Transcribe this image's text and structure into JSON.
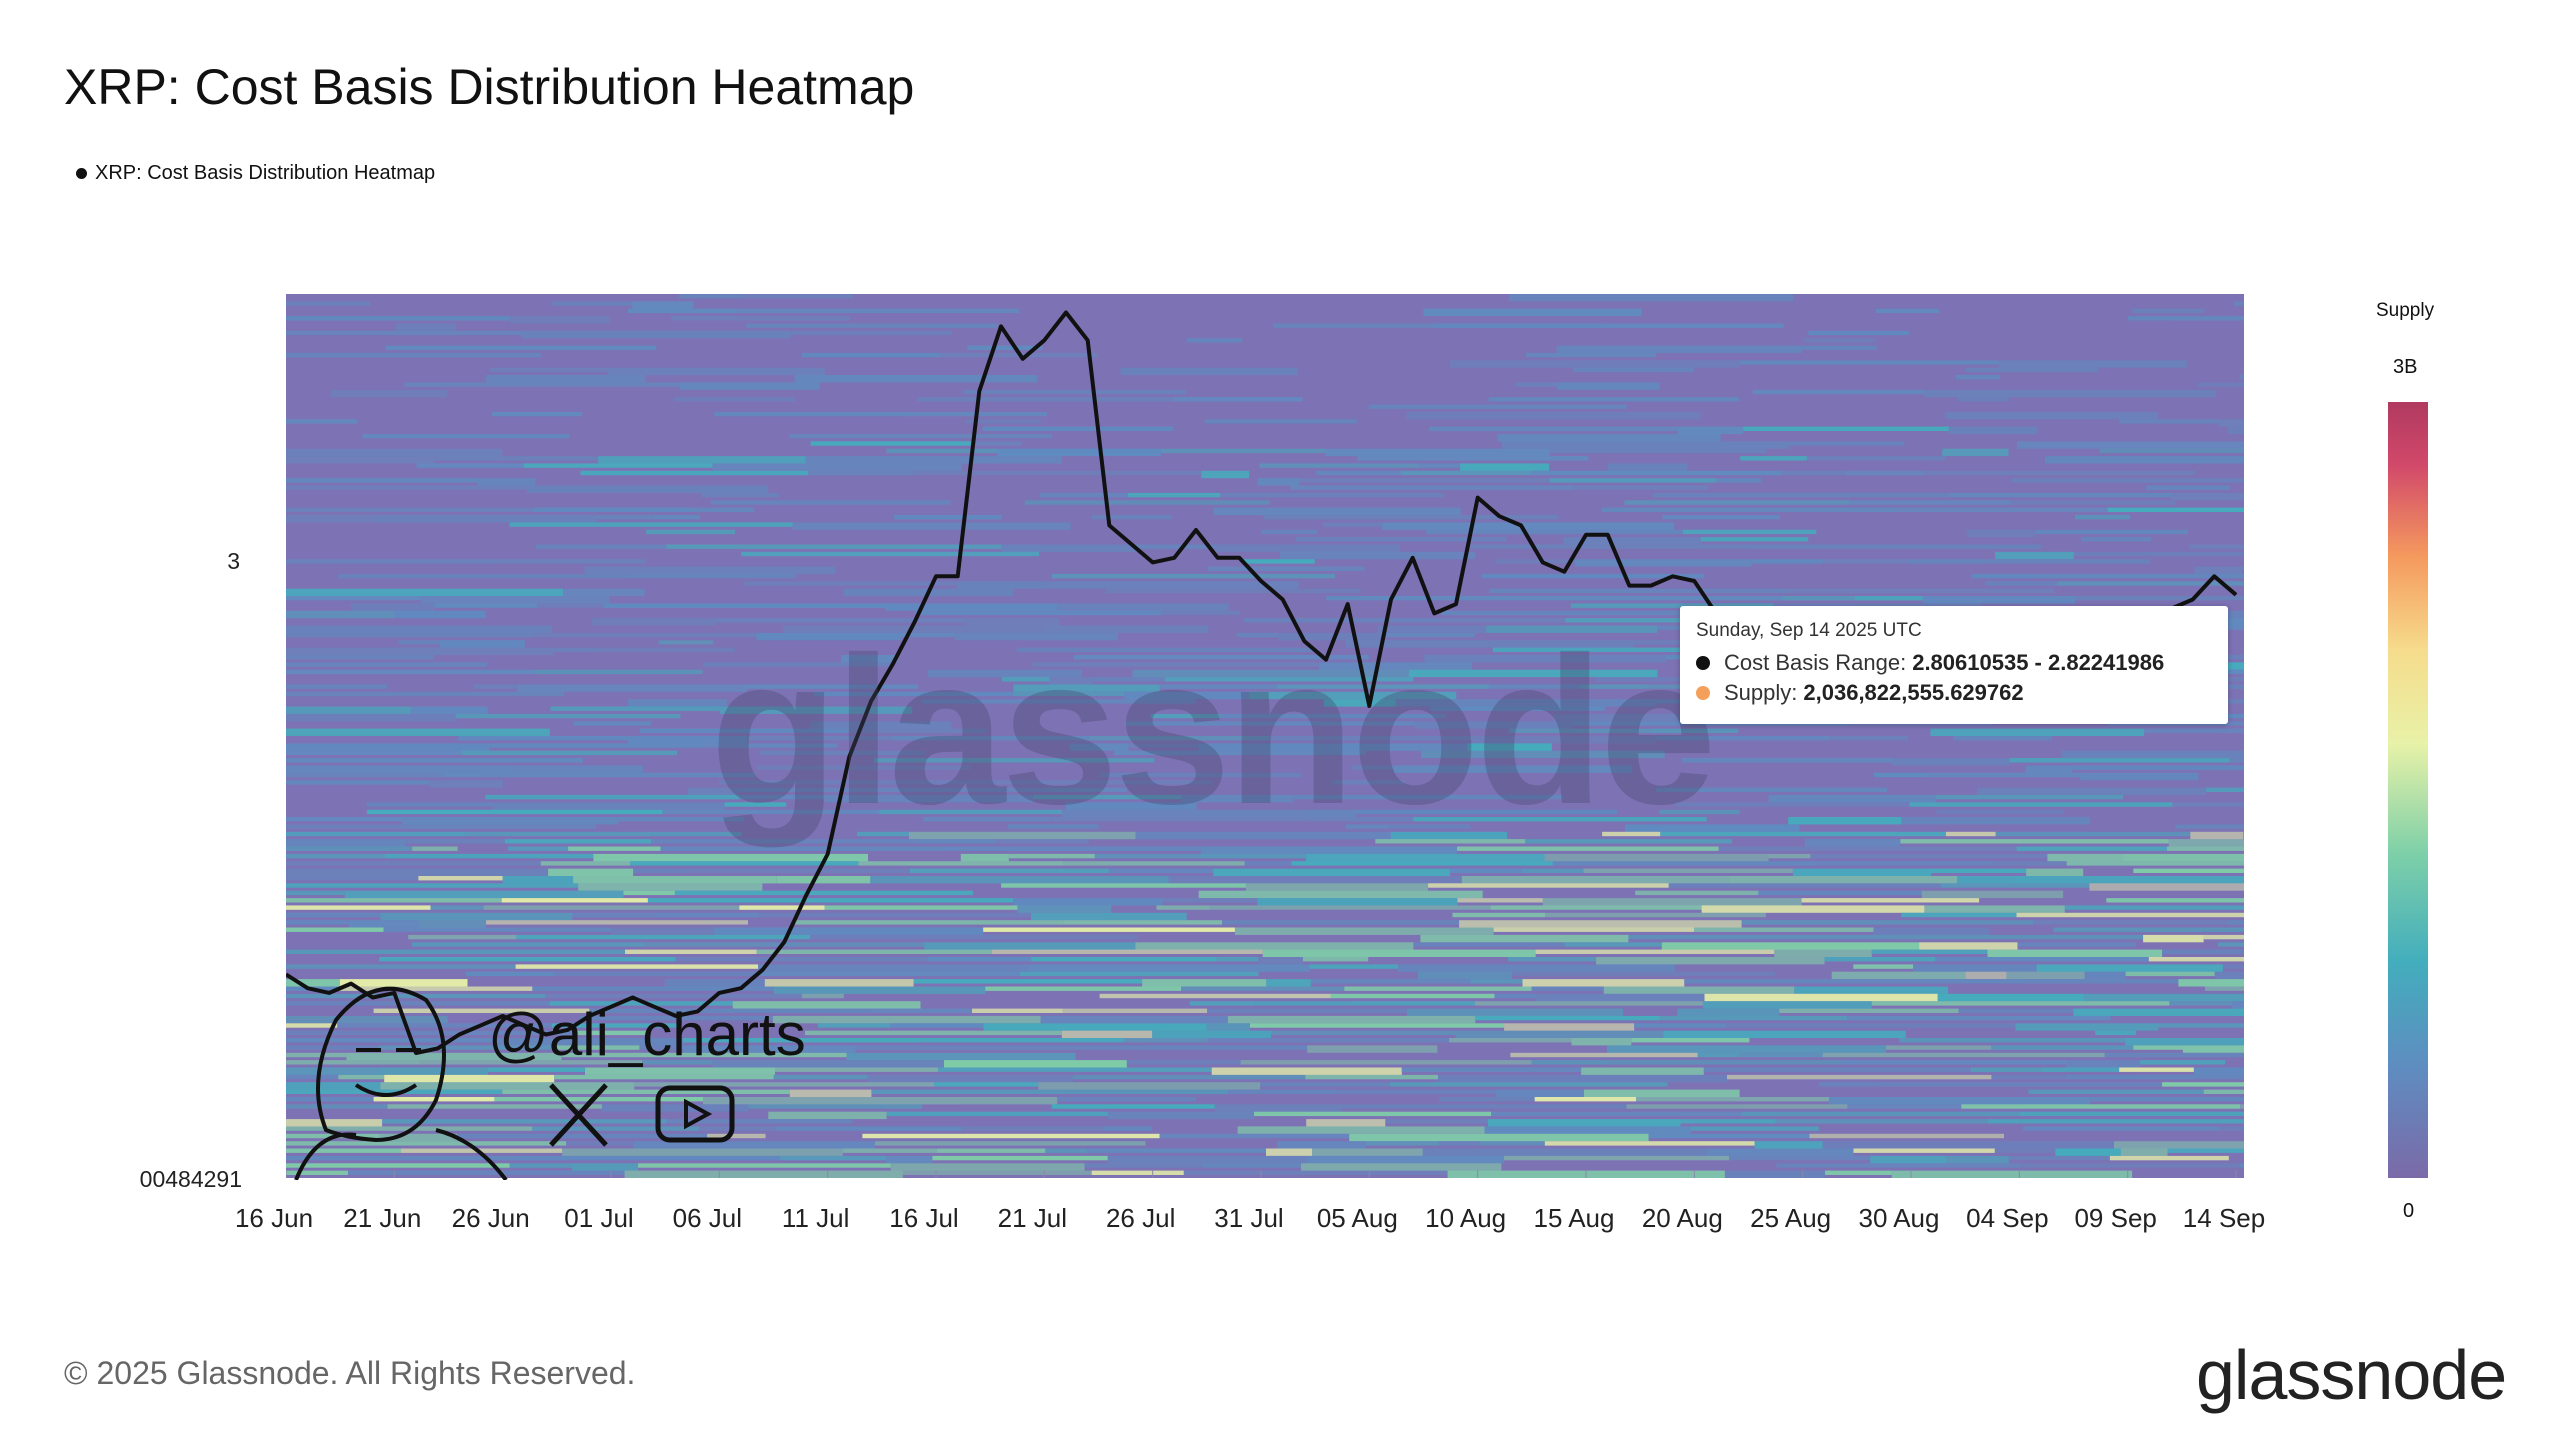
{
  "title": "XRP: Cost Basis Distribution Heatmap",
  "legend_label": "XRP: Cost Basis Distribution Heatmap",
  "chart_data": {
    "type": "heatmap",
    "title": "XRP: Cost Basis Distribution Heatmap",
    "x_tick_labels": [
      "16 Jun",
      "21 Jun",
      "26 Jun",
      "01 Jul",
      "06 Jul",
      "11 Jul",
      "16 Jul",
      "21 Jul",
      "26 Jul",
      "31 Jul",
      "05 Aug",
      "10 Aug",
      "15 Aug",
      "20 Aug",
      "25 Aug",
      "30 Aug",
      "04 Sep",
      "09 Sep",
      "14 Sep"
    ],
    "y_tick_labels": [
      "3",
      "00484291"
    ],
    "color_scale": {
      "label": "Supply",
      "max_label": "3B",
      "min_label": "0",
      "colors": [
        "#7b6aa8",
        "#5f8cc0",
        "#43aebd",
        "#7fd0a8",
        "#e8f2a8",
        "#f6dc8c",
        "#f59a5e",
        "#d1486a"
      ]
    },
    "price_series": {
      "name": "XRP: Cost Basis Distribution Heatmap",
      "x": [
        "2025-06-16",
        "2025-06-17",
        "2025-06-18",
        "2025-06-19",
        "2025-06-20",
        "2025-06-21",
        "2025-06-22",
        "2025-06-23",
        "2025-06-24",
        "2025-06-25",
        "2025-06-26",
        "2025-06-27",
        "2025-06-28",
        "2025-06-29",
        "2025-06-30",
        "2025-07-01",
        "2025-07-02",
        "2025-07-03",
        "2025-07-04",
        "2025-07-05",
        "2025-07-06",
        "2025-07-07",
        "2025-07-08",
        "2025-07-09",
        "2025-07-10",
        "2025-07-11",
        "2025-07-12",
        "2025-07-13",
        "2025-07-14",
        "2025-07-15",
        "2025-07-16",
        "2025-07-17",
        "2025-07-18",
        "2025-07-19",
        "2025-07-20",
        "2025-07-21",
        "2025-07-22",
        "2025-07-23",
        "2025-07-24",
        "2025-07-25",
        "2025-07-26",
        "2025-07-27",
        "2025-07-28",
        "2025-07-29",
        "2025-07-30",
        "2025-07-31",
        "2025-08-01",
        "2025-08-02",
        "2025-08-03",
        "2025-08-04",
        "2025-08-05",
        "2025-08-06",
        "2025-08-07",
        "2025-08-08",
        "2025-08-09",
        "2025-08-10",
        "2025-08-11",
        "2025-08-12",
        "2025-08-13",
        "2025-08-14",
        "2025-08-15",
        "2025-08-16",
        "2025-08-17",
        "2025-08-18",
        "2025-08-19",
        "2025-08-20",
        "2025-08-21",
        "2025-08-22",
        "2025-08-23",
        "2025-08-24",
        "2025-08-25",
        "2025-08-26",
        "2025-08-27",
        "2025-08-28",
        "2025-08-29",
        "2025-08-30",
        "2025-08-31",
        "2025-09-01",
        "2025-09-02",
        "2025-09-03",
        "2025-09-04",
        "2025-09-05",
        "2025-09-06",
        "2025-09-07",
        "2025-09-08",
        "2025-09-09",
        "2025-09-10",
        "2025-09-11",
        "2025-09-12",
        "2025-09-13",
        "2025-09-14"
      ],
      "y": [
        2.2,
        2.17,
        2.16,
        2.18,
        2.15,
        2.16,
        2.03,
        2.04,
        2.07,
        2.09,
        2.11,
        2.09,
        2.07,
        2.08,
        2.11,
        2.13,
        2.15,
        2.13,
        2.11,
        2.12,
        2.16,
        2.17,
        2.21,
        2.27,
        2.37,
        2.46,
        2.67,
        2.79,
        2.87,
        2.96,
        3.06,
        3.06,
        3.46,
        3.6,
        3.53,
        3.57,
        3.63,
        3.57,
        3.17,
        3.13,
        3.09,
        3.1,
        3.16,
        3.1,
        3.1,
        3.05,
        3.01,
        2.92,
        2.88,
        3.0,
        2.78,
        3.01,
        3.1,
        2.98,
        3.0,
        3.23,
        3.19,
        3.17,
        3.09,
        3.07,
        3.15,
        3.15,
        3.04,
        3.04,
        3.06,
        3.05,
        2.98,
        2.87,
        2.9,
        2.89,
        2.84,
        2.88,
        2.95,
        2.96,
        2.83,
        2.98,
        2.96,
        2.96,
        2.86,
        2.84,
        2.8,
        2.78,
        2.83,
        2.84,
        2.86,
        2.88,
        2.9,
        2.99,
        3.01,
        3.06,
        3.02
      ]
    },
    "tooltip": {
      "date": "Sunday, Sep 14 2025 UTC",
      "rows": [
        {
          "label": "Cost Basis Range:",
          "value": "2.80610535 - 2.82241986",
          "color": "#111111"
        },
        {
          "label": "Supply:",
          "value": "2,036,822,555.629762",
          "color": "#f5a05a"
        }
      ]
    },
    "grid": false,
    "legend_position": "top-left"
  },
  "watermark": {
    "handle": "@ali_charts",
    "platforms": [
      "x-icon",
      "youtube-icon"
    ],
    "background_mark": "glassnode"
  },
  "footer": {
    "copyright": "© 2025 Glassnode. All Rights Reserved.",
    "brand": "glassnode"
  }
}
